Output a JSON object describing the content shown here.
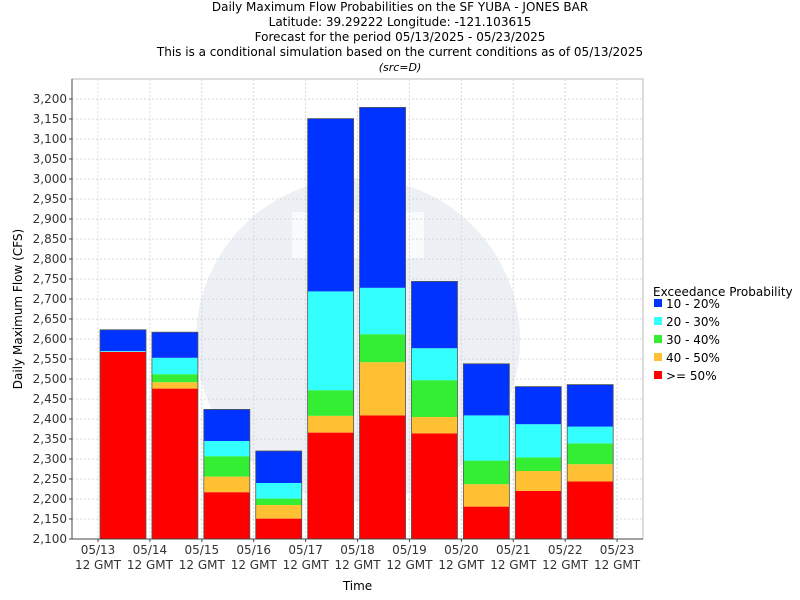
{
  "titles": [
    "Daily Maximum Flow Probabilities on the SF YUBA - JONES BAR",
    "Latitude: 39.29222 Longitude: -121.103615",
    "Forecast for the period 05/13/2025 - 05/23/2025",
    "This is a conditional simulation based on the current conditions as of 05/13/2025"
  ],
  "source_note": "(src=D)",
  "colors": {
    "band_10_20": "#0033ff",
    "band_20_30": "#33ffff",
    "band_30_40": "#33ee33",
    "band_40_50": "#ffc133",
    "band_ge_50": "#ff0000",
    "grid": "#d8d8d8",
    "watermark": "#dfe3ec"
  },
  "chart_data": {
    "type": "bar",
    "stacked": true,
    "xlabel": "Time",
    "ylabel": "Daily Maximum Flow (CFS)",
    "ylim": [
      2100,
      3250
    ],
    "y_ticks": [
      2100,
      2150,
      2200,
      2250,
      2300,
      2350,
      2400,
      2450,
      2500,
      2550,
      2600,
      2650,
      2700,
      2750,
      2800,
      2850,
      2900,
      2950,
      3000,
      3050,
      3100,
      3150,
      3200
    ],
    "x_ticks": [
      {
        "date": "05/13",
        "time": "12 GMT"
      },
      {
        "date": "05/14",
        "time": "12 GMT"
      },
      {
        "date": "05/15",
        "time": "12 GMT"
      },
      {
        "date": "05/16",
        "time": "12 GMT"
      },
      {
        "date": "05/17",
        "time": "12 GMT"
      },
      {
        "date": "05/18",
        "time": "12 GMT"
      },
      {
        "date": "05/19",
        "time": "12 GMT"
      },
      {
        "date": "05/20",
        "time": "12 GMT"
      },
      {
        "date": "05/21",
        "time": "12 GMT"
      },
      {
        "date": "05/22",
        "time": "12 GMT"
      },
      {
        "date": "05/23",
        "time": "12 GMT"
      }
    ],
    "grid": true,
    "legend_title": "Exceedance Probability",
    "legend_position": "right",
    "categories": [
      "05/13",
      "05/14",
      "05/15",
      "05/16",
      "05/17",
      "05/18",
      "05/19",
      "05/20",
      "05/21",
      "05/22"
    ],
    "series": [
      {
        "name": ">= 50%",
        "color_key": "band_ge_50",
        "top_values": [
          2568,
          2476,
          2217,
          2151,
          2366,
          2409,
          2364,
          2181,
          2220,
          2244
        ]
      },
      {
        "name": "40 - 50%",
        "color_key": "band_40_50",
        "top_values": [
          2568,
          2492,
          2256,
          2185,
          2408,
          2542,
          2405,
          2237,
          2270,
          2287
        ]
      },
      {
        "name": "30 - 40%",
        "color_key": "band_30_40",
        "top_values": [
          2568,
          2512,
          2307,
          2201,
          2472,
          2612,
          2497,
          2296,
          2304,
          2339
        ]
      },
      {
        "name": "20 - 30%",
        "color_key": "band_20_30",
        "top_values": [
          2570,
          2553,
          2345,
          2240,
          2719,
          2728,
          2577,
          2409,
          2387,
          2381
        ]
      },
      {
        "name": "10 - 20%",
        "color_key": "band_10_20",
        "top_values": [
          2623,
          2617,
          2424,
          2320,
          3151,
          3179,
          2744,
          2538,
          2481,
          2486
        ]
      }
    ],
    "legend_order": [
      "10 - 20%",
      "20 - 30%",
      "30 - 40%",
      "40 - 50%",
      ">= 50%"
    ]
  }
}
